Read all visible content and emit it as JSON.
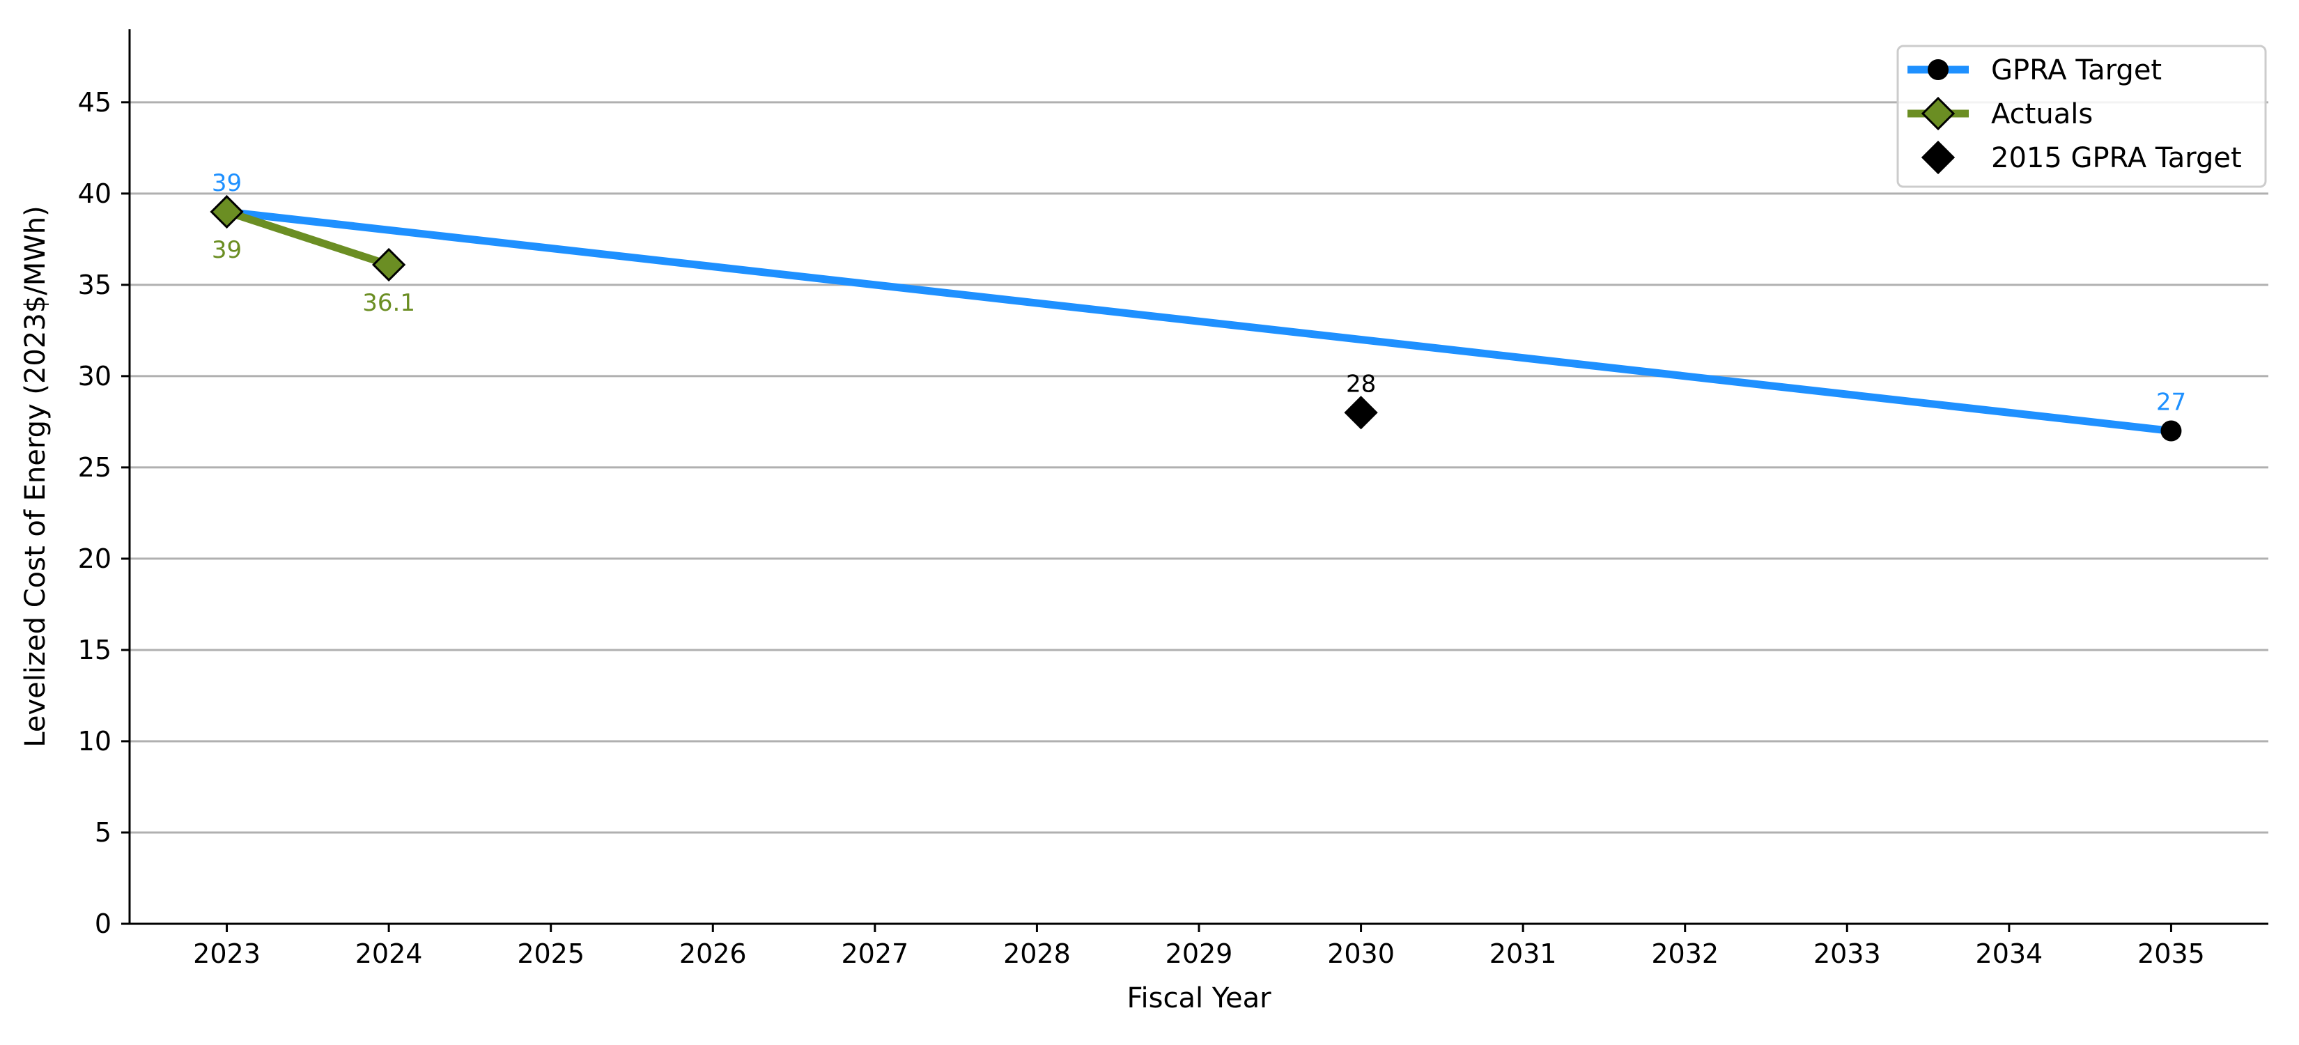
{
  "chart_data": {
    "type": "line",
    "title": "",
    "xlabel": "Fiscal Year",
    "ylabel": "Levelized Cost of Energy (2023$/MWh)",
    "xlim": [
      2022.4,
      2035.6
    ],
    "ylim": [
      0,
      49
    ],
    "x_ticks": [
      2023,
      2024,
      2025,
      2026,
      2027,
      2028,
      2029,
      2030,
      2031,
      2032,
      2033,
      2034,
      2035
    ],
    "y_ticks": [
      0,
      5,
      10,
      15,
      20,
      25,
      30,
      35,
      40,
      45
    ],
    "grid": "horizontal",
    "legend_position": "top-right",
    "series": [
      {
        "name": "GPRA Target",
        "color": "#1e90ff",
        "marker": "circle",
        "marker_color": "#000000",
        "points": [
          {
            "x": 2023,
            "y": 39
          },
          {
            "x": 2035,
            "y": 27
          }
        ],
        "markers_at": [
          2035
        ],
        "labels": [
          {
            "x": 2023,
            "y": 39,
            "text": "39"
          },
          {
            "x": 2035,
            "y": 27,
            "text": "27"
          }
        ]
      },
      {
        "name": "Actuals",
        "color": "#6b8e23",
        "marker": "diamond",
        "marker_color": "#6b8e23",
        "points": [
          {
            "x": 2023,
            "y": 39
          },
          {
            "x": 2024,
            "y": 36.1
          }
        ],
        "markers_at": [
          2023,
          2024
        ],
        "labels": [
          {
            "x": 2023,
            "y": 39,
            "text": "39"
          },
          {
            "x": 2024,
            "y": 36.1,
            "text": "36.1"
          }
        ]
      },
      {
        "name": "2015 GPRA Target",
        "color": "#000000",
        "marker": "diamond",
        "marker_color": "#000000",
        "points": [
          {
            "x": 2030,
            "y": 28
          }
        ],
        "markers_at": [
          2030
        ],
        "labels": [
          {
            "x": 2030,
            "y": 28,
            "text": "28"
          }
        ]
      }
    ]
  }
}
